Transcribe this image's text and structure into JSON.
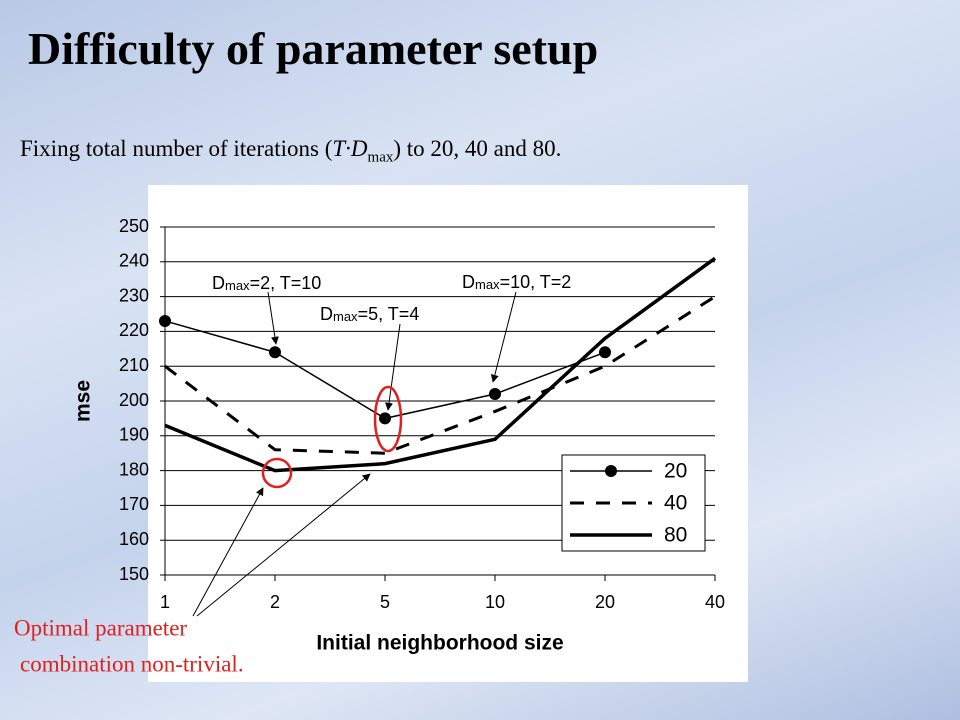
{
  "slide": {
    "title": "Difficulty of parameter setup",
    "subtitle": [
      "Fixing total number of iterations (",
      "T·D",
      "max",
      ") to 20, 40 and 80."
    ],
    "callout": [
      "Optimal parameter",
      "combination non-trivial."
    ]
  },
  "chart_data": {
    "type": "line",
    "x_label": "Initial neighborhood size",
    "y_label": "mse",
    "categories": [
      "1",
      "2",
      "5",
      "10",
      "20",
      "40"
    ],
    "ylim": [
      150,
      250
    ],
    "yticks": [
      150,
      160,
      170,
      180,
      190,
      200,
      210,
      220,
      230,
      240,
      250
    ],
    "grid": true,
    "legend": "lower-right",
    "series": [
      {
        "name": "20",
        "color": "#000000",
        "width": 1.5,
        "dashed": false,
        "marker": true,
        "values": [
          223,
          214,
          195,
          202,
          214,
          null
        ]
      },
      {
        "name": "40",
        "color": "#000000",
        "width": 3,
        "dashed": true,
        "marker": false,
        "values": [
          210,
          186,
          185,
          197,
          210,
          230
        ]
      },
      {
        "name": "80",
        "color": "#000000",
        "width": 3.5,
        "dashed": false,
        "marker": false,
        "values": [
          193,
          180,
          182,
          189,
          218,
          241
        ]
      }
    ],
    "annotations": [
      {
        "parts": [
          "D",
          "max",
          "=2, T=10"
        ]
      },
      {
        "parts": [
          "D",
          "max",
          "=5, T=4"
        ]
      },
      {
        "parts": [
          "D",
          "max",
          "=10, T=2"
        ]
      }
    ]
  }
}
